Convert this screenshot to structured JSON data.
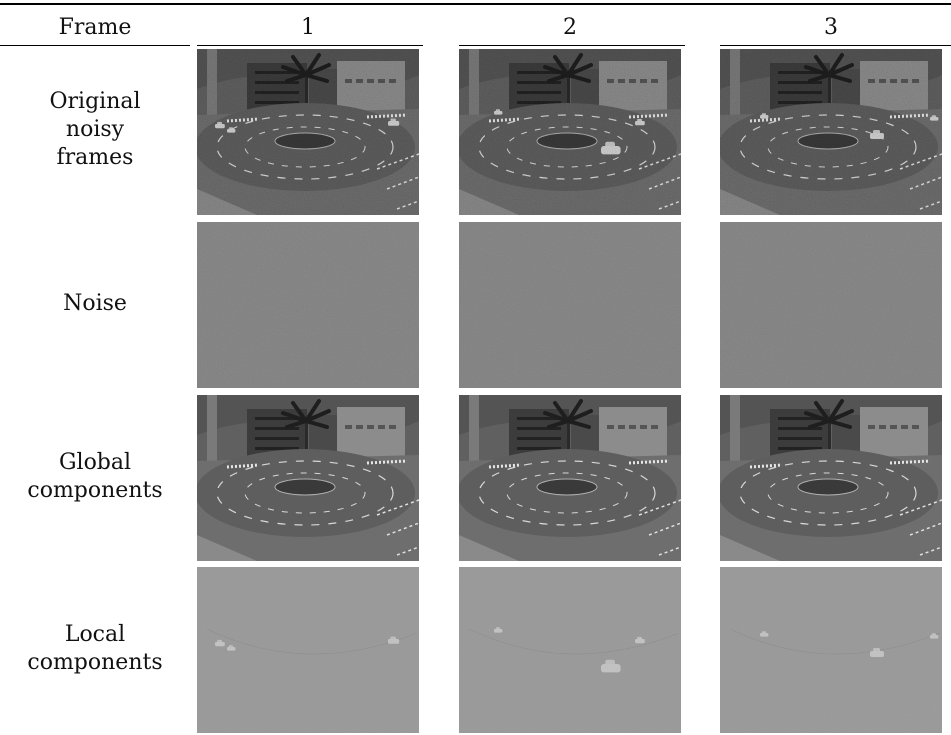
{
  "table": {
    "header": {
      "frame_label": "Frame",
      "columns": [
        "1",
        "2",
        "3"
      ]
    },
    "rows": [
      {
        "label_lines": [
          "Original",
          "noisy",
          "frames"
        ],
        "image_type": "noisy-roundabout"
      },
      {
        "label_lines": [
          "Noise"
        ],
        "image_type": "noise-field"
      },
      {
        "label_lines": [
          "Global",
          "components"
        ],
        "image_type": "clean-roundabout"
      },
      {
        "label_lines": [
          "Local",
          "components"
        ],
        "image_type": "moving-cars-only"
      }
    ]
  },
  "colors": {
    "rule": "#000000",
    "sky": "#545454",
    "road": "#6e6e6e",
    "noise_gray": "#8a8a8a",
    "local_gray": "#9c9c9c"
  }
}
